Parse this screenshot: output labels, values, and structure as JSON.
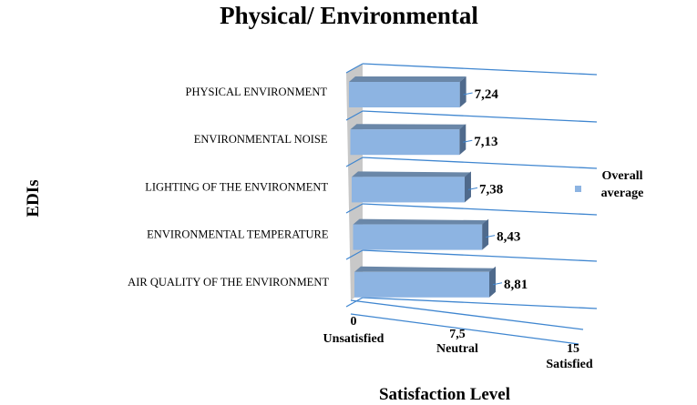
{
  "chart_data": {
    "type": "bar",
    "orientation": "horizontal",
    "title": "Physical/ Environmental",
    "xlabel": "Satisfaction Level",
    "ylabel": "EDIs",
    "categories": [
      "PHYSICAL ENVIRONMENT",
      "ENVIRONMENTAL NOISE",
      "LIGHTING OF THE ENVIRONMENT",
      "ENVIRONMENTAL TEMPERATURE",
      "AIR QUALITY OF THE ENVIRONMENT"
    ],
    "series": [
      {
        "name": "Overall average",
        "values": [
          7.24,
          7.13,
          7.38,
          8.43,
          8.81
        ],
        "labels": [
          "7,24",
          "7,13",
          "7,38",
          "8,43",
          "8,81"
        ]
      }
    ],
    "xlim": [
      0,
      15
    ],
    "x_ticks": [
      {
        "value": "0",
        "label": "Unsatisfied"
      },
      {
        "value": "7,5",
        "label": "Neutral"
      },
      {
        "value": "15",
        "label": "Satisfied"
      }
    ],
    "legend": {
      "position": "right",
      "entries": [
        "Overall",
        "average"
      ]
    },
    "grid": true,
    "colors": {
      "bar_front": "#8db4e2",
      "bar_top": "#6a87a8",
      "bar_side": "#4f6a8c",
      "grid": "#3f86d0",
      "wall": "#c8c8c8"
    }
  }
}
